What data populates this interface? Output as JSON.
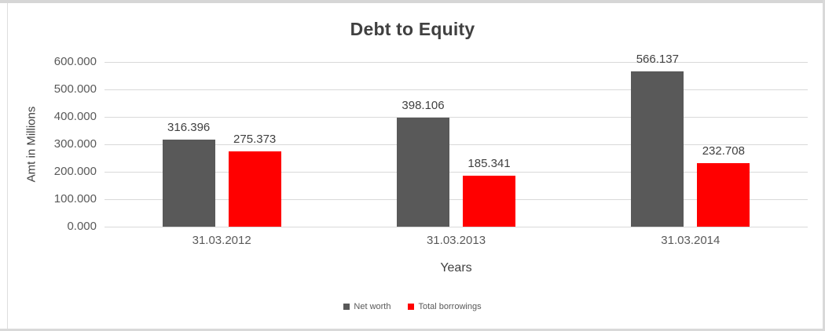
{
  "chart_data": {
    "type": "bar",
    "title": "Debt to Equity",
    "xlabel": "Years",
    "ylabel": "Amt in Millions",
    "categories": [
      "31.03.2012",
      "31.03.2013",
      "31.03.2014"
    ],
    "series": [
      {
        "name": "Net worth",
        "color": "#595959",
        "values": [
          316.396,
          398.106,
          566.137
        ],
        "labels": [
          "316.396",
          "398.106",
          "566.137"
        ]
      },
      {
        "name": "Total borrowings",
        "color": "#ff0000",
        "values": [
          275.373,
          185.341,
          232.708
        ],
        "labels": [
          "275.373",
          "185.341",
          "232.708"
        ]
      }
    ],
    "ylim": [
      0,
      600
    ],
    "yticks": [
      "600.000",
      "500.000",
      "400.000",
      "300.000",
      "200.000",
      "100.000",
      "0.000"
    ],
    "ytick_values": [
      600,
      500,
      400,
      300,
      200,
      100,
      0
    ],
    "grid": true,
    "legend_position": "bottom",
    "colors": {
      "grid": "#d9d9d9",
      "title_text": "#404040",
      "axis_text": "#595959",
      "data_label_text": "#404040",
      "frame_border": "#d9d9d9"
    }
  }
}
